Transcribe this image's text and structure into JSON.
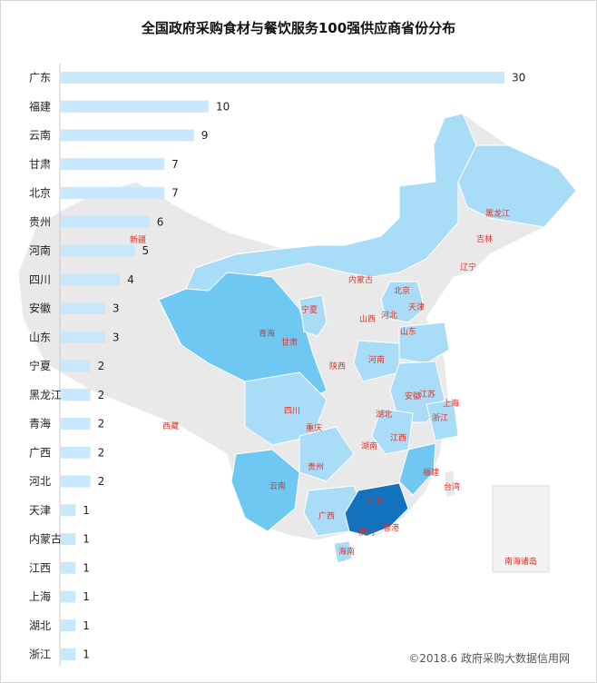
{
  "chart_data": {
    "type": "bar",
    "orientation": "horizontal",
    "title": "全国政府采购食材与餐饮服务100强供应商省份分布",
    "categories": [
      "广东",
      "福建",
      "云南",
      "甘肃",
      "北京",
      "贵州",
      "河南",
      "四川",
      "安徽",
      "山东",
      "宁夏",
      "黑龙江",
      "青海",
      "广西",
      "河北",
      "天津",
      "内蒙古",
      "江西",
      "上海",
      "湖北",
      "浙江"
    ],
    "values": [
      30,
      10,
      9,
      7,
      7,
      6,
      5,
      4,
      3,
      3,
      2,
      2,
      2,
      2,
      2,
      1,
      1,
      1,
      1,
      1,
      1
    ],
    "bar_color": "#c6e6fb",
    "xlim": [
      0,
      30
    ],
    "grid": false
  },
  "map": {
    "labels": [
      "黑龙江",
      "吉林",
      "辽宁",
      "内蒙古",
      "新疆",
      "北京",
      "天津",
      "河北",
      "山西",
      "山东",
      "宁夏",
      "青海",
      "甘肃",
      "陕西",
      "河南",
      "江苏",
      "安徽",
      "上海",
      "湖北",
      "浙江",
      "四川",
      "重庆",
      "西藏",
      "湖南",
      "江西",
      "贵州",
      "福建",
      "台湾",
      "云南",
      "广西",
      "广东",
      "香港",
      "澳门",
      "海南",
      "南海诸岛"
    ],
    "colors": {
      "none": "#e9e9e9",
      "light": "#a8dcf7",
      "mid": "#6ec8f2",
      "dark": "#1272bd",
      "border": "#ffffff"
    }
  },
  "footer": {
    "copyright": "©2018.6 政府采购大数据信用网"
  }
}
